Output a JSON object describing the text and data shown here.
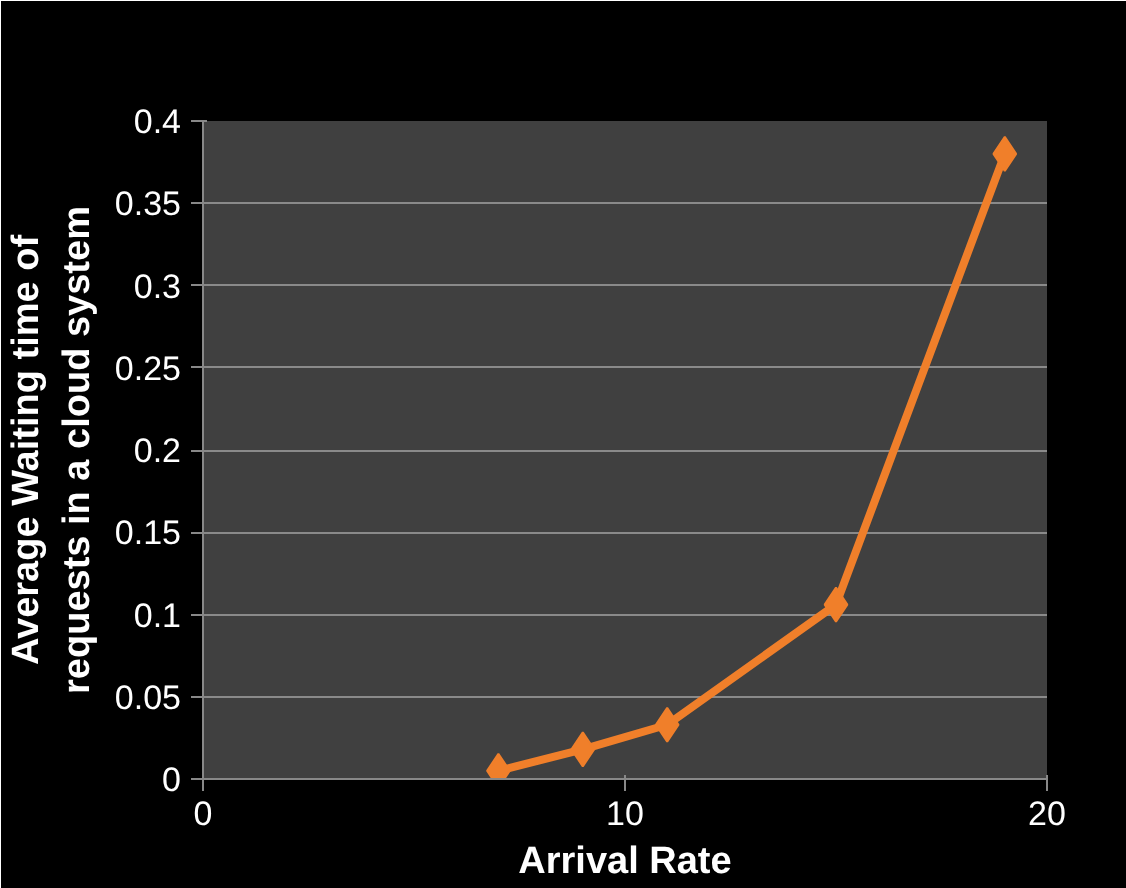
{
  "chart_data": {
    "type": "line",
    "xlabel": "Arrival Rate",
    "ylabel": "Average Waiting time of\nrequests in a cloud system",
    "x": [
      7,
      9,
      11,
      15,
      19
    ],
    "series": [
      {
        "color": "#f07f2a",
        "values": [
          0.005,
          0.018,
          0.033,
          0.106,
          0.38
        ]
      }
    ],
    "xlim": [
      0,
      20
    ],
    "xticks": [
      0,
      10,
      20
    ],
    "ylim": [
      0,
      0.4
    ],
    "yticks": [
      0,
      0.05,
      0.1,
      0.15,
      0.2,
      0.25,
      0.3,
      0.35,
      0.4
    ],
    "grid": "y",
    "marker": "diamond",
    "line_style": "solid"
  }
}
